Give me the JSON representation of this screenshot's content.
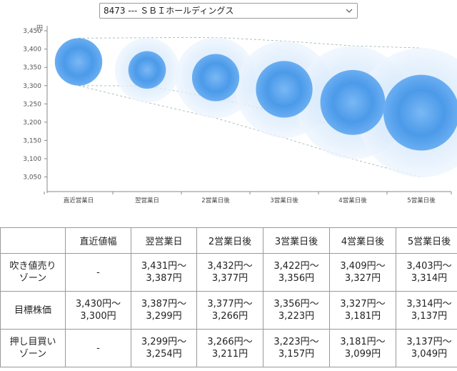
{
  "selector": {
    "value": "8473 --- ＳＢＩホールディングス"
  },
  "chart_data": {
    "type": "scatter",
    "ylabel_unit": "円",
    "yticks": [
      "3,450",
      "3,400",
      "3,350",
      "3,300",
      "3,250",
      "3,200",
      "3,150",
      "3,100",
      "3,050"
    ],
    "ytick_values": [
      3450,
      3400,
      3350,
      3300,
      3250,
      3200,
      3150,
      3100,
      3050
    ],
    "ylim": [
      3010,
      3460
    ],
    "categories": [
      "直近営業日",
      "翌営業日",
      "2営業日後",
      "3営業日後",
      "4営業日後",
      "5営業日後"
    ],
    "center": [
      3365,
      3343,
      3322,
      3290,
      3254,
      3226
    ],
    "upper": [
      3430,
      3431,
      3432,
      3422,
      3409,
      3403
    ],
    "lower": [
      3300,
      3299,
      3266,
      3223,
      3181,
      3137
    ],
    "push_low": [
      3300,
      3254,
      3211,
      3157,
      3099,
      3049
    ],
    "grid": false,
    "colors": {
      "core": "#3d8ee6",
      "halo": "#d9ebfc",
      "guide": "#6b8f86"
    }
  },
  "table": {
    "headers": [
      "",
      "直近値幅",
      "翌営業日",
      "2営業日後",
      "3営業日後",
      "4営業日後",
      "5営業日後"
    ],
    "rows": [
      {
        "label": [
          "吹き値売り",
          "ゾーン"
        ],
        "cells": [
          [
            "-"
          ],
          [
            "3,431円～",
            "3,387円"
          ],
          [
            "3,432円～",
            "3,377円"
          ],
          [
            "3,422円～",
            "3,356円"
          ],
          [
            "3,409円～",
            "3,327円"
          ],
          [
            "3,403円～",
            "3,314円"
          ]
        ]
      },
      {
        "label": [
          "目標株価"
        ],
        "cells": [
          [
            "3,430円～",
            "3,300円"
          ],
          [
            "3,387円～",
            "3,299円"
          ],
          [
            "3,377円～",
            "3,266円"
          ],
          [
            "3,356円～",
            "3,223円"
          ],
          [
            "3,327円～",
            "3,181円"
          ],
          [
            "3,314円～",
            "3,137円"
          ]
        ]
      },
      {
        "label": [
          "押し目買い",
          "ゾーン"
        ],
        "cells": [
          [
            "-"
          ],
          [
            "3,299円～",
            "3,254円"
          ],
          [
            "3,266円～",
            "3,211円"
          ],
          [
            "3,223円～",
            "3,157円"
          ],
          [
            "3,181円～",
            "3,099円"
          ],
          [
            "3,137円～",
            "3,049円"
          ]
        ]
      }
    ]
  }
}
